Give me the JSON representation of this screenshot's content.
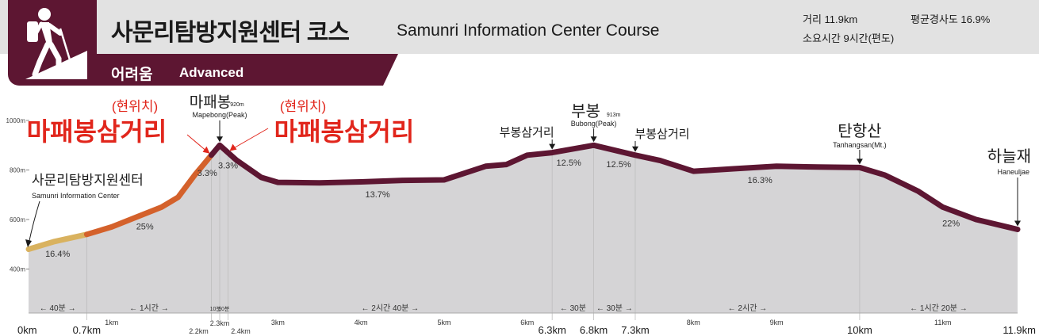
{
  "header": {
    "title_ko": "사문리탐방지원센터 코스",
    "title_en": "Samunri Information Center Course",
    "level_ko": "어려움",
    "level_en": "Advanced",
    "distance": "거리 11.9km",
    "avg_slope": "평균경사도 16.9%",
    "duration": "소요시간 9시간(편도)",
    "icon": "hiker-icon"
  },
  "colors": {
    "brand": "#5d1632",
    "segment_easy": "#d9b25f",
    "segment_moderate": "#d4612b",
    "segment_hard": "#5d1632",
    "current_location": "#e1261c",
    "area_fill": "#d5d4d6"
  },
  "chart_data": {
    "type": "area",
    "xlabel": "",
    "ylabel": "",
    "xlim": [
      0,
      11.9
    ],
    "ylim": [
      300,
      1000
    ],
    "y_ticks": [
      "1000m",
      "800m",
      "600m",
      "400m"
    ],
    "y_tick_values": [
      1000,
      800,
      600,
      400
    ],
    "x_minor_ticks": [
      "1km",
      "3km",
      "4km",
      "5km",
      "6km",
      "8km",
      "9km",
      "11km"
    ],
    "x_minor_values": [
      1,
      3,
      4,
      5,
      6,
      8,
      9,
      11
    ],
    "x_major_ticks": [
      "0km",
      "0.7km",
      "6.3km",
      "6.8km",
      "7.3km",
      "10km",
      "11.9km"
    ],
    "x_major_values": [
      0,
      0.7,
      6.3,
      6.8,
      7.3,
      10,
      11.9
    ],
    "x_small_ticks": [
      "2.2km",
      "2.3km",
      "2.4km"
    ],
    "x_small_values": [
      2.2,
      2.3,
      2.4
    ],
    "elevation": [
      [
        0,
        480
      ],
      [
        0.3,
        510
      ],
      [
        0.7,
        540
      ],
      [
        1.0,
        570
      ],
      [
        1.3,
        610
      ],
      [
        1.6,
        650
      ],
      [
        1.8,
        690
      ],
      [
        2.0,
        780
      ],
      [
        2.15,
        840
      ],
      [
        2.3,
        900
      ],
      [
        2.5,
        840
      ],
      [
        2.8,
        770
      ],
      [
        3.0,
        750
      ],
      [
        3.5,
        748
      ],
      [
        4.0,
        752
      ],
      [
        4.5,
        758
      ],
      [
        5.0,
        760
      ],
      [
        5.5,
        815
      ],
      [
        5.75,
        822
      ],
      [
        6.0,
        860
      ],
      [
        6.3,
        870
      ],
      [
        6.8,
        900
      ],
      [
        7.3,
        860
      ],
      [
        7.6,
        838
      ],
      [
        8.0,
        795
      ],
      [
        8.5,
        805
      ],
      [
        9.0,
        815
      ],
      [
        9.5,
        812
      ],
      [
        10.0,
        810
      ],
      [
        10.3,
        780
      ],
      [
        10.7,
        715
      ],
      [
        11.0,
        650
      ],
      [
        11.4,
        600
      ],
      [
        11.9,
        560
      ]
    ],
    "segments": [
      {
        "from": 0,
        "to": 0.7,
        "color": "#d9b25f"
      },
      {
        "from": 0.7,
        "to": 2.2,
        "color": "#d4612b"
      },
      {
        "from": 2.2,
        "to": 11.9,
        "color": "#5d1632"
      }
    ],
    "slope_labels": [
      {
        "x": 0.35,
        "label": "16.4%"
      },
      {
        "x": 1.4,
        "label": "25%"
      },
      {
        "x": 2.15,
        "label": "3.3%"
      },
      {
        "x": 2.4,
        "label": "3.3%"
      },
      {
        "x": 4.2,
        "label": "13.7%"
      },
      {
        "x": 6.5,
        "label": "12.5%"
      },
      {
        "x": 7.1,
        "label": "12.5%"
      },
      {
        "x": 8.8,
        "label": "16.3%"
      },
      {
        "x": 11.1,
        "label": "22%"
      }
    ],
    "time_labels": [
      {
        "from": 0,
        "to": 0.7,
        "label": "← 40분 →"
      },
      {
        "from": 0.7,
        "to": 2.2,
        "label": "← 1시간 →"
      },
      {
        "from": 2.2,
        "to": 2.3,
        "label": "10분"
      },
      {
        "from": 2.3,
        "to": 2.4,
        "label": "10분"
      },
      {
        "from": 2.4,
        "to": 6.3,
        "label": "← 2시간 40분 →"
      },
      {
        "from": 6.3,
        "to": 6.8,
        "label": "← 30분"
      },
      {
        "from": 6.8,
        "to": 7.3,
        "label": "← 30분 →"
      },
      {
        "from": 7.3,
        "to": 10.0,
        "label": "← 2시간 →"
      },
      {
        "from": 10.0,
        "to": 11.9,
        "label": "← 1시간 20분 →"
      }
    ],
    "places": [
      {
        "x": 0,
        "name_ko": "사문리탐방지원센터",
        "name_en": "Samunri Information Center",
        "height": ""
      },
      {
        "x": 2.3,
        "name_ko": "마패봉",
        "name_en": "Mapebong(Peak)",
        "height": "920m"
      },
      {
        "x": 6.3,
        "name_ko": "부봉삼거리",
        "name_en": "",
        "height": ""
      },
      {
        "x": 6.8,
        "name_ko": "부봉",
        "name_en": "Bubong(Peak)",
        "height": "913m"
      },
      {
        "x": 7.3,
        "name_ko": "부봉삼거리",
        "name_en": "",
        "height": ""
      },
      {
        "x": 10.0,
        "name_ko": "탄항산",
        "name_en": "Tanhangsan(Mt.)",
        "height": ""
      },
      {
        "x": 11.9,
        "name_ko": "하늘재",
        "name_en": "Haneuljae",
        "height": ""
      }
    ],
    "current_location": {
      "tag": "(현위치)",
      "name": "마패봉삼거리",
      "x_left": 2.2,
      "x_right": 2.4
    }
  }
}
